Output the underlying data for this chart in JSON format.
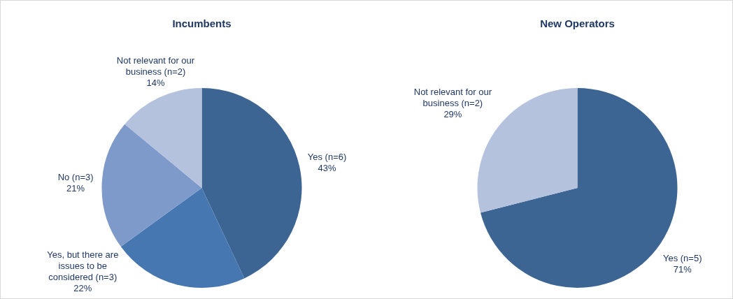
{
  "chart_data": [
    {
      "type": "pie",
      "title": "Incumbents",
      "categories": [
        "Yes (n=6)",
        "Yes, but there are issues to be considered (n=3)",
        "No (n=3)",
        "Not relevant for our business (n=2)"
      ],
      "values": [
        43,
        22,
        21,
        14
      ],
      "value_labels": [
        "43%",
        "22%",
        "21%",
        "14%"
      ],
      "colors": [
        "#3c6594",
        "#4677b0",
        "#7e9acb",
        "#b4c2dd"
      ],
      "legend": false
    },
    {
      "type": "pie",
      "title": "New Operators",
      "categories": [
        "Yes (n=5)",
        "Not relevant for our business (n=2)"
      ],
      "values": [
        71,
        29
      ],
      "value_labels": [
        "71%",
        "29%"
      ],
      "colors": [
        "#3c6594",
        "#b4c2dd"
      ],
      "legend": false
    }
  ]
}
